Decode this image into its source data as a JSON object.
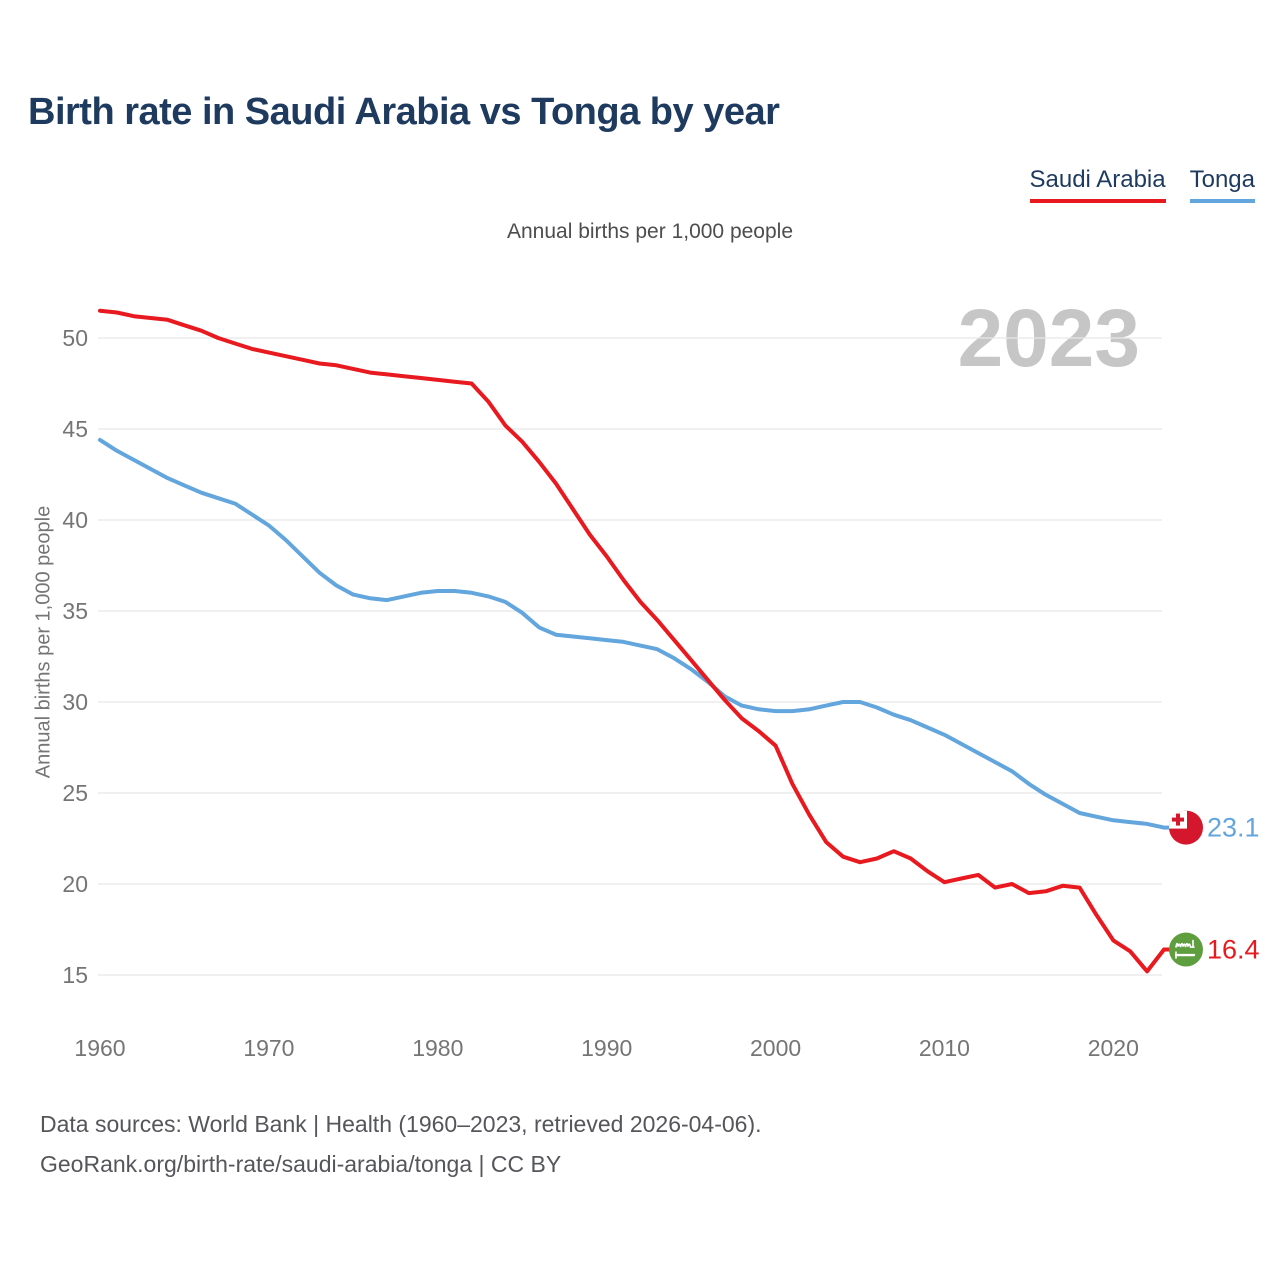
{
  "title": "Birth rate in Saudi Arabia vs Tonga by year",
  "subtitle": "Annual births per 1,000 people",
  "watermark": "2023",
  "legend": [
    {
      "label": "Saudi Arabia",
      "color": "#e8191f"
    },
    {
      "label": "Tonga",
      "color": "#63a5dd"
    }
  ],
  "footer": {
    "line1": "Data sources: World Bank | Health (1960–2023, retrieved 2026-04-06).",
    "line2": "GeoRank.org/birth-rate/saudi-arabia/tonga | CC BY"
  },
  "chart_data": {
    "type": "line",
    "title": "Birth rate in Saudi Arabia vs Tonga by year",
    "xlabel": "",
    "ylabel": "Annual births per 1,000 people",
    "x_start": 1960,
    "x_end": 2023,
    "x_ticks": [
      1960,
      1970,
      1980,
      1990,
      2000,
      2010,
      2020
    ],
    "y_ticks": [
      50,
      45,
      40,
      35,
      30,
      25,
      20,
      15
    ],
    "ylim": [
      14,
      53
    ],
    "grid": "horizontal",
    "legend_position": "top-right",
    "series": [
      {
        "name": "Saudi Arabia",
        "color": "#e8191f",
        "flag": "saudi-arabia",
        "flag_color": "#5f9e3f",
        "end_label": "16.4",
        "values": [
          51.5,
          51.4,
          51.2,
          51.1,
          51.0,
          50.7,
          50.4,
          50.0,
          49.7,
          49.4,
          49.2,
          49.0,
          48.8,
          48.6,
          48.5,
          48.3,
          48.1,
          48.0,
          47.9,
          47.8,
          47.7,
          47.6,
          47.5,
          46.5,
          45.2,
          44.3,
          43.2,
          42.0,
          40.6,
          39.2,
          38.0,
          36.7,
          35.5,
          34.5,
          33.4,
          32.3,
          31.2,
          30.1,
          29.1,
          28.4,
          27.6,
          25.5,
          23.8,
          22.3,
          21.5,
          21.2,
          21.4,
          21.8,
          21.4,
          20.7,
          20.1,
          20.3,
          20.5,
          19.8,
          20.0,
          19.5,
          19.6,
          19.9,
          19.8,
          18.3,
          16.9,
          16.3,
          15.2,
          16.4
        ]
      },
      {
        "name": "Tonga",
        "color": "#63a5dd",
        "flag": "tonga",
        "flag_color": "#d5172e",
        "end_label": "23.1",
        "values": [
          44.4,
          43.8,
          43.3,
          42.8,
          42.3,
          41.9,
          41.5,
          41.2,
          40.9,
          40.3,
          39.7,
          38.9,
          38.0,
          37.1,
          36.4,
          35.9,
          35.7,
          35.6,
          35.8,
          36.0,
          36.1,
          36.1,
          36.0,
          35.8,
          35.5,
          34.9,
          34.1,
          33.7,
          33.6,
          33.5,
          33.4,
          33.3,
          33.1,
          32.9,
          32.4,
          31.8,
          31.1,
          30.3,
          29.8,
          29.6,
          29.5,
          29.5,
          29.6,
          29.8,
          30.0,
          30.0,
          29.7,
          29.3,
          29.0,
          28.6,
          28.2,
          27.7,
          27.2,
          26.7,
          26.2,
          25.5,
          24.9,
          24.4,
          23.9,
          23.7,
          23.5,
          23.4,
          23.3,
          23.1
        ]
      }
    ]
  }
}
